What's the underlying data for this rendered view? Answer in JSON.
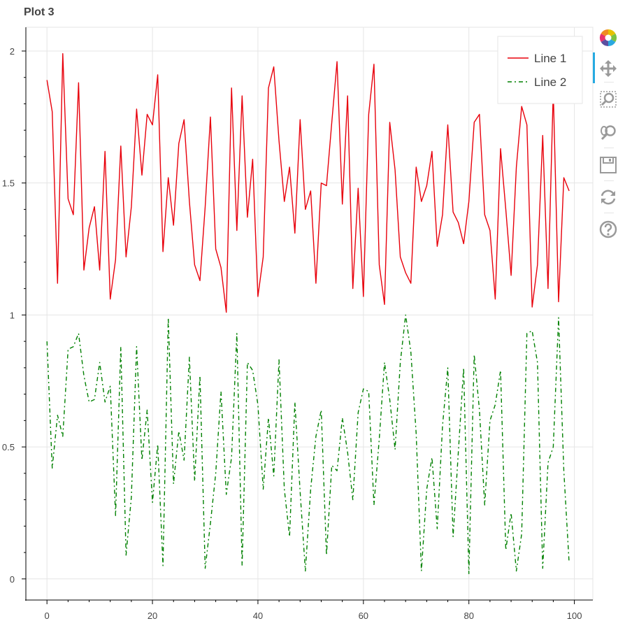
{
  "title": "Plot 3",
  "toolbar": {
    "tools": [
      {
        "name": "bokeh-logo-icon",
        "label": "Bokeh"
      },
      {
        "name": "pan-icon",
        "label": "Pan",
        "active": true
      },
      {
        "name": "box-zoom-icon",
        "label": "Box Zoom"
      },
      {
        "name": "wheel-zoom-icon",
        "label": "Wheel Zoom"
      },
      {
        "name": "save-icon",
        "label": "Save"
      },
      {
        "name": "reset-icon",
        "label": "Reset"
      },
      {
        "name": "help-icon",
        "label": "Help"
      }
    ],
    "accent": "#26aae1"
  },
  "chart_data": {
    "type": "line",
    "title": "Plot 3",
    "xlim": [
      -4,
      103.5
    ],
    "ylim": [
      -0.08,
      2.09
    ],
    "x_ticks": [
      0,
      20,
      40,
      60,
      80,
      100
    ],
    "x_tick_labels": [
      "0",
      "20",
      "40",
      "60",
      "80",
      "100"
    ],
    "y_ticks": [
      0,
      0.5,
      1,
      1.5,
      2
    ],
    "y_tick_labels": [
      "0",
      "0.5",
      "1",
      "1.5",
      "2"
    ],
    "grid": true,
    "legend": "top-right",
    "series": [
      {
        "name": "Line 1",
        "color": "#e8000b",
        "dash": "solid",
        "x": [
          0,
          1,
          2,
          3,
          4,
          5,
          6,
          7,
          8,
          9,
          10,
          11,
          12,
          13,
          14,
          15,
          16,
          17,
          18,
          19,
          20,
          21,
          22,
          23,
          24,
          25,
          26,
          27,
          28,
          29,
          30,
          31,
          32,
          33,
          34,
          35,
          36,
          37,
          38,
          39,
          40,
          41,
          42,
          43,
          44,
          45,
          46,
          47,
          48,
          49,
          50,
          51,
          52,
          53,
          54,
          55,
          56,
          57,
          58,
          59,
          60,
          61,
          62,
          63,
          64,
          65,
          66,
          67,
          68,
          69,
          70,
          71,
          72,
          73,
          74,
          75,
          76,
          77,
          78,
          79,
          80,
          81,
          82,
          83,
          84,
          85,
          86,
          87,
          88,
          89,
          90,
          91,
          92,
          93,
          94,
          95,
          96,
          97,
          98,
          99
        ],
        "values": [
          1.89,
          1.77,
          1.12,
          1.99,
          1.44,
          1.38,
          1.88,
          1.17,
          1.33,
          1.41,
          1.17,
          1.62,
          1.06,
          1.21,
          1.64,
          1.22,
          1.41,
          1.78,
          1.53,
          1.76,
          1.72,
          1.91,
          1.24,
          1.52,
          1.34,
          1.65,
          1.74,
          1.43,
          1.19,
          1.13,
          1.41,
          1.75,
          1.25,
          1.18,
          1.01,
          1.86,
          1.32,
          1.83,
          1.37,
          1.59,
          1.07,
          1.22,
          1.86,
          1.94,
          1.66,
          1.43,
          1.56,
          1.31,
          1.74,
          1.4,
          1.47,
          1.12,
          1.5,
          1.49,
          1.73,
          1.96,
          1.42,
          1.83,
          1.1,
          1.48,
          1.07,
          1.76,
          1.95,
          1.19,
          1.04,
          1.73,
          1.55,
          1.22,
          1.16,
          1.12,
          1.56,
          1.43,
          1.49,
          1.62,
          1.26,
          1.38,
          1.72,
          1.39,
          1.35,
          1.27,
          1.43,
          1.73,
          1.76,
          1.38,
          1.32,
          1.06,
          1.63,
          1.4,
          1.15,
          1.56,
          1.79,
          1.72,
          1.03,
          1.19,
          1.68,
          1.1,
          1.85,
          1.05,
          1.52,
          1.47
        ]
      },
      {
        "name": "Line 2",
        "color": "#008000",
        "dash": "dashdot",
        "x": [
          0,
          1,
          2,
          3,
          4,
          5,
          6,
          7,
          8,
          9,
          10,
          11,
          12,
          13,
          14,
          15,
          16,
          17,
          18,
          19,
          20,
          21,
          22,
          23,
          24,
          25,
          26,
          27,
          28,
          29,
          30,
          31,
          32,
          33,
          34,
          35,
          36,
          37,
          38,
          39,
          40,
          41,
          42,
          43,
          44,
          45,
          46,
          47,
          48,
          49,
          50,
          51,
          52,
          53,
          54,
          55,
          56,
          57,
          58,
          59,
          60,
          61,
          62,
          63,
          64,
          65,
          66,
          67,
          68,
          69,
          70,
          71,
          72,
          73,
          74,
          75,
          76,
          77,
          78,
          79,
          80,
          81,
          82,
          83,
          84,
          85,
          86,
          87,
          88,
          89,
          90,
          91,
          92,
          93,
          94,
          95,
          96,
          97,
          98,
          99
        ],
        "values": [
          0.9,
          0.42,
          0.62,
          0.54,
          0.87,
          0.88,
          0.93,
          0.77,
          0.67,
          0.68,
          0.82,
          0.67,
          0.73,
          0.24,
          0.88,
          0.09,
          0.31,
          0.88,
          0.45,
          0.64,
          0.29,
          0.51,
          0.05,
          0.99,
          0.36,
          0.56,
          0.45,
          0.84,
          0.37,
          0.77,
          0.04,
          0.21,
          0.4,
          0.71,
          0.32,
          0.46,
          0.93,
          0.05,
          0.82,
          0.79,
          0.66,
          0.34,
          0.61,
          0.39,
          0.83,
          0.34,
          0.16,
          0.67,
          0.33,
          0.03,
          0.34,
          0.54,
          0.64,
          0.09,
          0.43,
          0.41,
          0.61,
          0.48,
          0.3,
          0.63,
          0.72,
          0.71,
          0.28,
          0.53,
          0.82,
          0.68,
          0.49,
          0.82,
          1.0,
          0.86,
          0.55,
          0.03,
          0.34,
          0.46,
          0.19,
          0.58,
          0.8,
          0.16,
          0.48,
          0.8,
          0.02,
          0.85,
          0.64,
          0.28,
          0.6,
          0.66,
          0.79,
          0.11,
          0.25,
          0.03,
          0.17,
          0.93,
          0.94,
          0.82,
          0.04,
          0.44,
          0.5,
          0.99,
          0.41,
          0.06
        ]
      }
    ]
  }
}
